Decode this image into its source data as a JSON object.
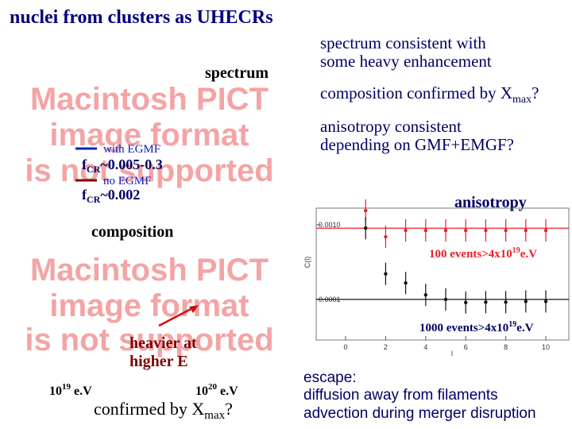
{
  "title": "nuclei from clusters as UHECRs",
  "left": {
    "spectrum_label": "spectrum",
    "pict_1": [
      "Macintosh PICT",
      "image format",
      "is not supported"
    ],
    "legend": [
      {
        "label": "with EGMF",
        "f": "f",
        "sub": "CR",
        "value": "~0.005-0.3"
      },
      {
        "label": "no EGMF",
        "f": "f",
        "sub": "CR",
        "value": "~0.002"
      }
    ],
    "composition_label": "composition",
    "pict_2": [
      "Macintosh PICT",
      "image format",
      "is not supported"
    ],
    "annotation": [
      "heavier at",
      "higher E"
    ],
    "energy_axis": [
      {
        "base": "10",
        "exp": "19",
        "unit": " e.V"
      },
      {
        "base": "10",
        "exp": "20",
        "unit": " e.V"
      }
    ],
    "caption": {
      "text": "confirmed by X",
      "sub": "max",
      "end": "?"
    }
  },
  "right": {
    "spectrum": [
      "spectrum consistent with",
      "some heavy enhancement"
    ],
    "composition": {
      "text": "composition confirmed by X",
      "sub": "max",
      "end": "?"
    },
    "anisotropy": [
      "anisotropy consistent",
      "depending on GMF+EMGF?"
    ],
    "escape": [
      "escape:",
      "diffusion away from filaments",
      "advection during merger disruption"
    ]
  },
  "plot": {
    "title": "anisotropy",
    "ylabel": "C(l)",
    "xlabel": "l",
    "log_y": true,
    "xlim": [
      -1.47,
      11.15
    ],
    "ylim": [
      2.86e-05,
      0.00167
    ],
    "xticks": [
      0,
      2,
      4,
      6,
      8,
      10
    ],
    "yticks": [
      {
        "value": 0.001,
        "label": "0.0010"
      },
      0.0001
    ],
    "x": [
      1,
      2,
      3,
      4,
      5,
      6,
      7,
      8,
      9,
      10
    ],
    "series": [
      {
        "name": "100 events>4x10",
        "exp": "19",
        "unit": "e.V",
        "color": "#e8202a",
        "model_level": 0.0009,
        "values": [
          0.00155,
          0.00069,
          0.00084,
          0.00084,
          0.00084,
          0.00084,
          0.00084,
          0.00084,
          0.00084,
          0.00084
        ]
      },
      {
        "name": "1000 events>4x10",
        "exp": "19",
        "unit": "e.V",
        "color": "#111111",
        "model_level": 0.0001,
        "values": [
          0.0009,
          0.00022,
          0.000166,
          0.000115,
          0.0001,
          9.1e-05,
          9.2e-05,
          9.2e-05,
          9.4e-05,
          9.4e-05
        ]
      }
    ]
  }
}
